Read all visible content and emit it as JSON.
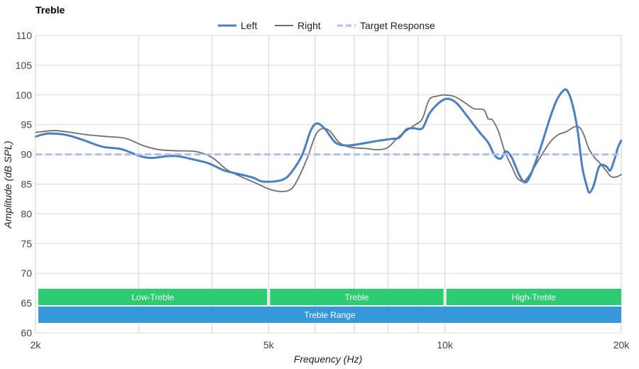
{
  "chart_data": {
    "type": "line",
    "title": "Treble",
    "xlabel": "Frequency (Hz)",
    "ylabel": "Amplitude (dB SPL)",
    "x_scale": "log",
    "xlim": [
      2000,
      20000
    ],
    "ylim": [
      60,
      110
    ],
    "x_ticks": [
      {
        "value": 2000,
        "label": "2k"
      },
      {
        "value": 5000,
        "label": "5k"
      },
      {
        "value": 10000,
        "label": "10k"
      },
      {
        "value": 20000,
        "label": "20k"
      }
    ],
    "x_gridlines": [
      2000,
      3000,
      4000,
      5000,
      6000,
      7000,
      8000,
      9000,
      10000,
      20000
    ],
    "y_ticks": [
      60,
      65,
      70,
      75,
      80,
      85,
      90,
      95,
      100,
      105,
      110
    ],
    "grid": true,
    "legend_position": "top-center",
    "series": [
      {
        "name": "Left",
        "color": "#4a7fc1",
        "style": "solid-thick",
        "points": [
          [
            2000,
            93.0
          ],
          [
            2100,
            93.5
          ],
          [
            2250,
            93.3
          ],
          [
            2400,
            92.5
          ],
          [
            2600,
            91.3
          ],
          [
            2800,
            90.9
          ],
          [
            3000,
            89.8
          ],
          [
            3150,
            89.4
          ],
          [
            3350,
            89.7
          ],
          [
            3500,
            89.7
          ],
          [
            3700,
            89.2
          ],
          [
            3950,
            88.5
          ],
          [
            4200,
            87.3
          ],
          [
            4450,
            86.7
          ],
          [
            4700,
            86.1
          ],
          [
            4850,
            85.5
          ],
          [
            5000,
            85.4
          ],
          [
            5150,
            85.5
          ],
          [
            5300,
            85.8
          ],
          [
            5450,
            86.8
          ],
          [
            5700,
            89.8
          ],
          [
            5900,
            94.0
          ],
          [
            6050,
            95.2
          ],
          [
            6250,
            94.2
          ],
          [
            6500,
            92.0
          ],
          [
            6800,
            91.5
          ],
          [
            7200,
            91.8
          ],
          [
            7700,
            92.3
          ],
          [
            8100,
            92.6
          ],
          [
            8350,
            92.8
          ],
          [
            8600,
            94.2
          ],
          [
            8850,
            94.4
          ],
          [
            9150,
            94.4
          ],
          [
            9400,
            96.8
          ],
          [
            9650,
            98.2
          ],
          [
            9950,
            99.2
          ],
          [
            10200,
            99.3
          ],
          [
            10500,
            98.5
          ],
          [
            10900,
            96.5
          ],
          [
            11400,
            94.0
          ],
          [
            11850,
            92.0
          ],
          [
            12150,
            89.9
          ],
          [
            12450,
            89.3
          ],
          [
            12700,
            90.5
          ],
          [
            13000,
            89.5
          ],
          [
            13400,
            86.5
          ],
          [
            13700,
            85.3
          ],
          [
            14000,
            86.5
          ],
          [
            14550,
            91.0
          ],
          [
            15100,
            96.0
          ],
          [
            15500,
            99.0
          ],
          [
            15850,
            100.5
          ],
          [
            16150,
            100.8
          ],
          [
            16500,
            98.5
          ],
          [
            16850,
            94.0
          ],
          [
            17150,
            88.0
          ],
          [
            17450,
            84.8
          ],
          [
            17650,
            83.6
          ],
          [
            17950,
            84.8
          ],
          [
            18350,
            88.0
          ],
          [
            18850,
            88.0
          ],
          [
            19150,
            87.3
          ],
          [
            19450,
            89.0
          ],
          [
            19750,
            91.2
          ],
          [
            20000,
            92.3
          ]
        ]
      },
      {
        "name": "Right",
        "color": "#6f6f6f",
        "style": "solid-thin",
        "points": [
          [
            2000,
            93.7
          ],
          [
            2150,
            94.0
          ],
          [
            2300,
            93.7
          ],
          [
            2450,
            93.3
          ],
          [
            2650,
            93.0
          ],
          [
            2850,
            92.7
          ],
          [
            3050,
            91.5
          ],
          [
            3250,
            90.8
          ],
          [
            3500,
            90.6
          ],
          [
            3750,
            90.5
          ],
          [
            4000,
            89.5
          ],
          [
            4250,
            87.4
          ],
          [
            4500,
            86.2
          ],
          [
            4750,
            85.2
          ],
          [
            5000,
            84.2
          ],
          [
            5200,
            83.8
          ],
          [
            5400,
            83.9
          ],
          [
            5550,
            85.0
          ],
          [
            5800,
            89.0
          ],
          [
            6000,
            93.0
          ],
          [
            6150,
            94.3
          ],
          [
            6350,
            94.0
          ],
          [
            6600,
            92.0
          ],
          [
            6900,
            91.2
          ],
          [
            7300,
            91.0
          ],
          [
            7700,
            90.8
          ],
          [
            8000,
            91.2
          ],
          [
            8300,
            92.8
          ],
          [
            8600,
            94.0
          ],
          [
            8900,
            95.0
          ],
          [
            9150,
            96.0
          ],
          [
            9400,
            99.2
          ],
          [
            9700,
            99.8
          ],
          [
            10000,
            100.0
          ],
          [
            10400,
            99.7
          ],
          [
            10850,
            98.6
          ],
          [
            11200,
            97.7
          ],
          [
            11650,
            97.5
          ],
          [
            11850,
            96.0
          ],
          [
            12050,
            95.8
          ],
          [
            12350,
            93.8
          ],
          [
            12650,
            90.5
          ],
          [
            13000,
            88.0
          ],
          [
            13300,
            86.0
          ],
          [
            13650,
            85.5
          ],
          [
            14000,
            86.8
          ],
          [
            14500,
            89.3
          ],
          [
            15100,
            92.0
          ],
          [
            15600,
            93.3
          ],
          [
            16100,
            93.8
          ],
          [
            16600,
            94.6
          ],
          [
            16950,
            94.6
          ],
          [
            17250,
            93.4
          ],
          [
            17600,
            91.0
          ],
          [
            18000,
            89.5
          ],
          [
            18400,
            88.5
          ],
          [
            18800,
            87.4
          ],
          [
            19200,
            86.3
          ],
          [
            19600,
            86.2
          ],
          [
            20000,
            86.6
          ]
        ]
      },
      {
        "name": "Target Response",
        "color": "#aebff5",
        "style": "dashed",
        "points": [
          [
            2000,
            90.0
          ],
          [
            20000,
            90.0
          ]
        ]
      }
    ],
    "bands": [
      {
        "label": "Low-Treble",
        "from": 2000,
        "to": 5000,
        "color": "#2ecc71",
        "row": 1
      },
      {
        "label": "Treble",
        "from": 5000,
        "to": 10000,
        "color": "#2ecc71",
        "row": 1
      },
      {
        "label": "High-Treble",
        "from": 10000,
        "to": 20000,
        "color": "#2ecc71",
        "row": 1
      },
      {
        "label": "Treble Range",
        "from": 2000,
        "to": 20000,
        "color": "#3498db",
        "row": 2
      }
    ]
  }
}
